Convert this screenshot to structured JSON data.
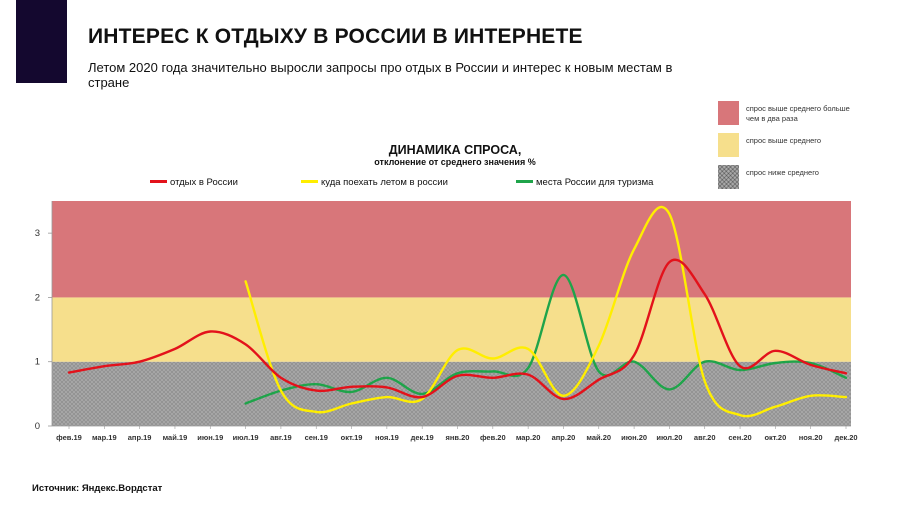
{
  "header": {
    "title": "ИНТЕРЕС К ОТДЫХУ В РОССИИ В ИНТЕРНЕТЕ",
    "subtitle": "Летом 2020 года значительно выросли запросы про отдых в России и интерес к новым местам в стране"
  },
  "zones_legend": [
    {
      "label": "спрос выше среднего больше чем в два раза",
      "color": "#d8767a"
    },
    {
      "label": "спрос выше среднего",
      "color": "#f6df8c"
    },
    {
      "label": "спрос ниже среднего",
      "color": "#a9a9a9"
    }
  ],
  "source": "Источник: Яндекс.Вордстат",
  "chart_data": {
    "type": "line",
    "title": "ДИНАМИКА СПРОСА,",
    "subtitle": "отклонение от среднего значения %",
    "xlabel": "",
    "ylabel": "",
    "ylim": [
      0,
      3.5
    ],
    "yticks": [
      "0",
      "1",
      "2",
      "3"
    ],
    "grid": false,
    "legend_position": "top",
    "bands": [
      {
        "from": 0,
        "to": 1,
        "color": "#a9a9a9",
        "pattern": "hatch"
      },
      {
        "from": 1,
        "to": 2,
        "color": "#f6df8c"
      },
      {
        "from": 2,
        "to": 3.5,
        "color": "#d8767a"
      }
    ],
    "categories": [
      "фев.19",
      "мар.19",
      "апр.19",
      "май.19",
      "июн.19",
      "июл.19",
      "авг.19",
      "сен.19",
      "окт.19",
      "ноя.19",
      "дек.19",
      "янв.20",
      "фев.20",
      "мар.20",
      "апр.20",
      "май.20",
      "июн.20",
      "июл.20",
      "авг.20",
      "сен.20",
      "окт.20",
      "ноя.20",
      "дек.20"
    ],
    "series": [
      {
        "name": "отдых в России",
        "color": "#e3121b",
        "values": [
          0.83,
          0.93,
          1.0,
          1.2,
          1.47,
          1.27,
          0.75,
          0.55,
          0.61,
          0.6,
          0.45,
          0.78,
          0.75,
          0.8,
          0.42,
          0.72,
          1.1,
          2.55,
          2.05,
          0.93,
          1.17,
          0.95,
          0.82
        ]
      },
      {
        "name": "куда поехать летом в россии",
        "color": "#ffee00",
        "values": [
          null,
          null,
          null,
          null,
          null,
          2.25,
          0.55,
          0.22,
          0.35,
          0.45,
          0.42,
          1.18,
          1.05,
          1.2,
          0.47,
          1.25,
          2.75,
          3.3,
          0.7,
          0.17,
          0.3,
          0.47,
          0.45
        ]
      },
      {
        "name": "места России для туризма",
        "color": "#1fa44a",
        "values": [
          null,
          null,
          null,
          null,
          null,
          0.35,
          0.55,
          0.65,
          0.53,
          0.75,
          0.5,
          0.82,
          0.85,
          0.9,
          2.35,
          0.85,
          1.0,
          0.57,
          1.0,
          0.87,
          0.98,
          0.98,
          0.75
        ]
      }
    ]
  }
}
